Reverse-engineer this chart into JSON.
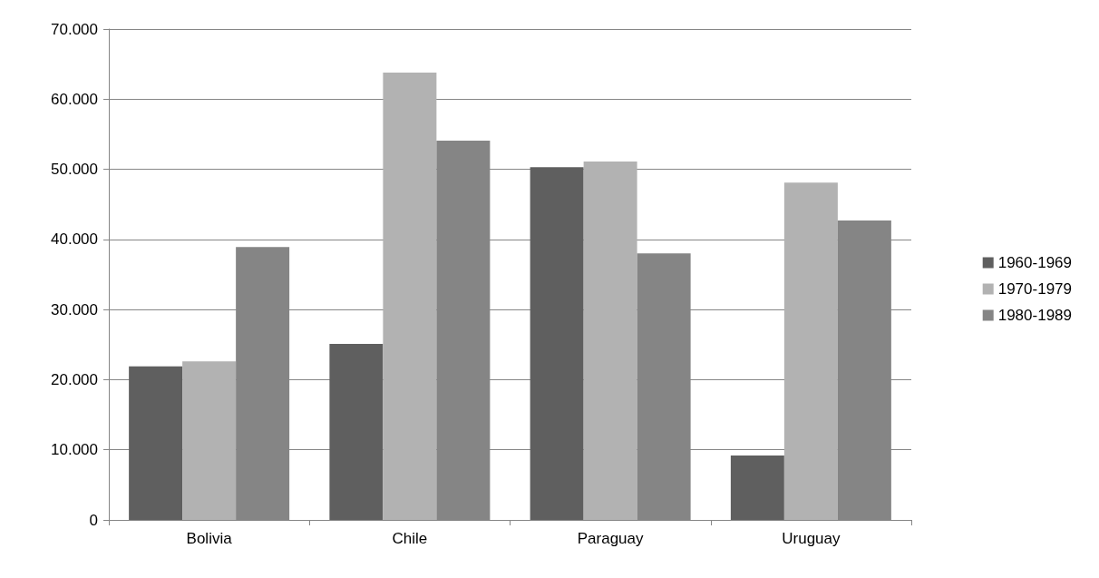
{
  "chart_data": {
    "type": "bar",
    "categories": [
      "Bolivia",
      "Chile",
      "Paraguay",
      "Uruguay"
    ],
    "series": [
      {
        "name": "1960-1969",
        "color": "#5f5f5f",
        "values": [
          21900,
          25100,
          50300,
          9200
        ]
      },
      {
        "name": "1970-1979",
        "color": "#b2b2b2",
        "values": [
          22600,
          63800,
          51100,
          48100
        ]
      },
      {
        "name": "1980-1989",
        "color": "#858585",
        "values": [
          38900,
          54100,
          38000,
          42700
        ]
      }
    ],
    "ylim": [
      0,
      70000
    ],
    "yticks": [
      0,
      {
        "value": 10000,
        "label": "10.000"
      },
      {
        "value": 20000,
        "label": "20.000"
      },
      {
        "value": 30000,
        "label": "30.000"
      },
      {
        "value": 40000,
        "label": "40.000"
      },
      {
        "value": 50000,
        "label": "50.000"
      },
      {
        "value": 60000,
        "label": "60.000"
      },
      {
        "value": 70000,
        "label": "70.000"
      }
    ],
    "grid": "y",
    "legend": "right"
  }
}
